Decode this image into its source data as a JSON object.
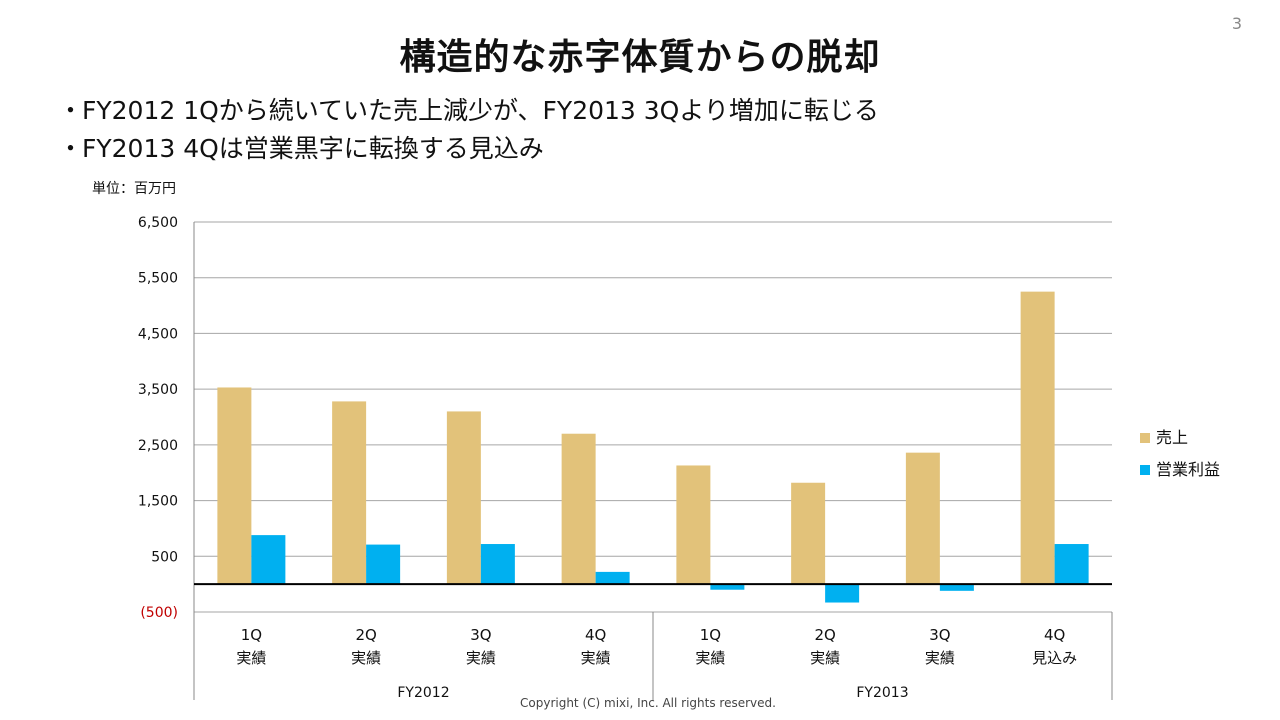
{
  "page_number": "3",
  "title": "構造的な赤字体質からの脱却",
  "bullets": [
    "FY2012 1Qから続いていた売上減少が、FY2013 3Qより増加に転じる",
    "FY2013 4Qは営業黒字に転換する見込み"
  ],
  "bullet_marker": "・",
  "unit_label": "単位：百万円",
  "copyright": "Copyright (C) mixi, Inc. All rights reserved.",
  "colors": {
    "sales": "#E2C27A",
    "op_income": "#00B0F0",
    "negative_tick": "#C00000",
    "grid": "#A6A6A6"
  },
  "chart_data": {
    "type": "bar",
    "categories": [
      [
        "1Q",
        "実績"
      ],
      [
        "2Q",
        "実績"
      ],
      [
        "3Q",
        "実績"
      ],
      [
        "4Q",
        "実績"
      ],
      [
        "1Q",
        "実績"
      ],
      [
        "2Q",
        "実績"
      ],
      [
        "3Q",
        "実績"
      ],
      [
        "4Q",
        "見込み"
      ]
    ],
    "groups": [
      {
        "label": "FY2012",
        "span": 4
      },
      {
        "label": "FY2013",
        "span": 4
      }
    ],
    "series": [
      {
        "name": "売上",
        "values": [
          3530,
          3280,
          3100,
          2700,
          2130,
          1820,
          2360,
          5250
        ]
      },
      {
        "name": "営業利益",
        "values": [
          880,
          710,
          720,
          220,
          -100,
          -330,
          -120,
          720
        ]
      }
    ],
    "yticks": [
      {
        "value": 6500,
        "label": "6,500"
      },
      {
        "value": 5500,
        "label": "5,500"
      },
      {
        "value": 4500,
        "label": "4,500"
      },
      {
        "value": 3500,
        "label": "3,500"
      },
      {
        "value": 2500,
        "label": "2,500"
      },
      {
        "value": 1500,
        "label": "1,500"
      },
      {
        "value": 500,
        "label": "500"
      },
      {
        "value": -500,
        "label": "(500)"
      }
    ],
    "ylim": [
      -500,
      6500
    ],
    "grid": true,
    "legend_position": "right"
  }
}
